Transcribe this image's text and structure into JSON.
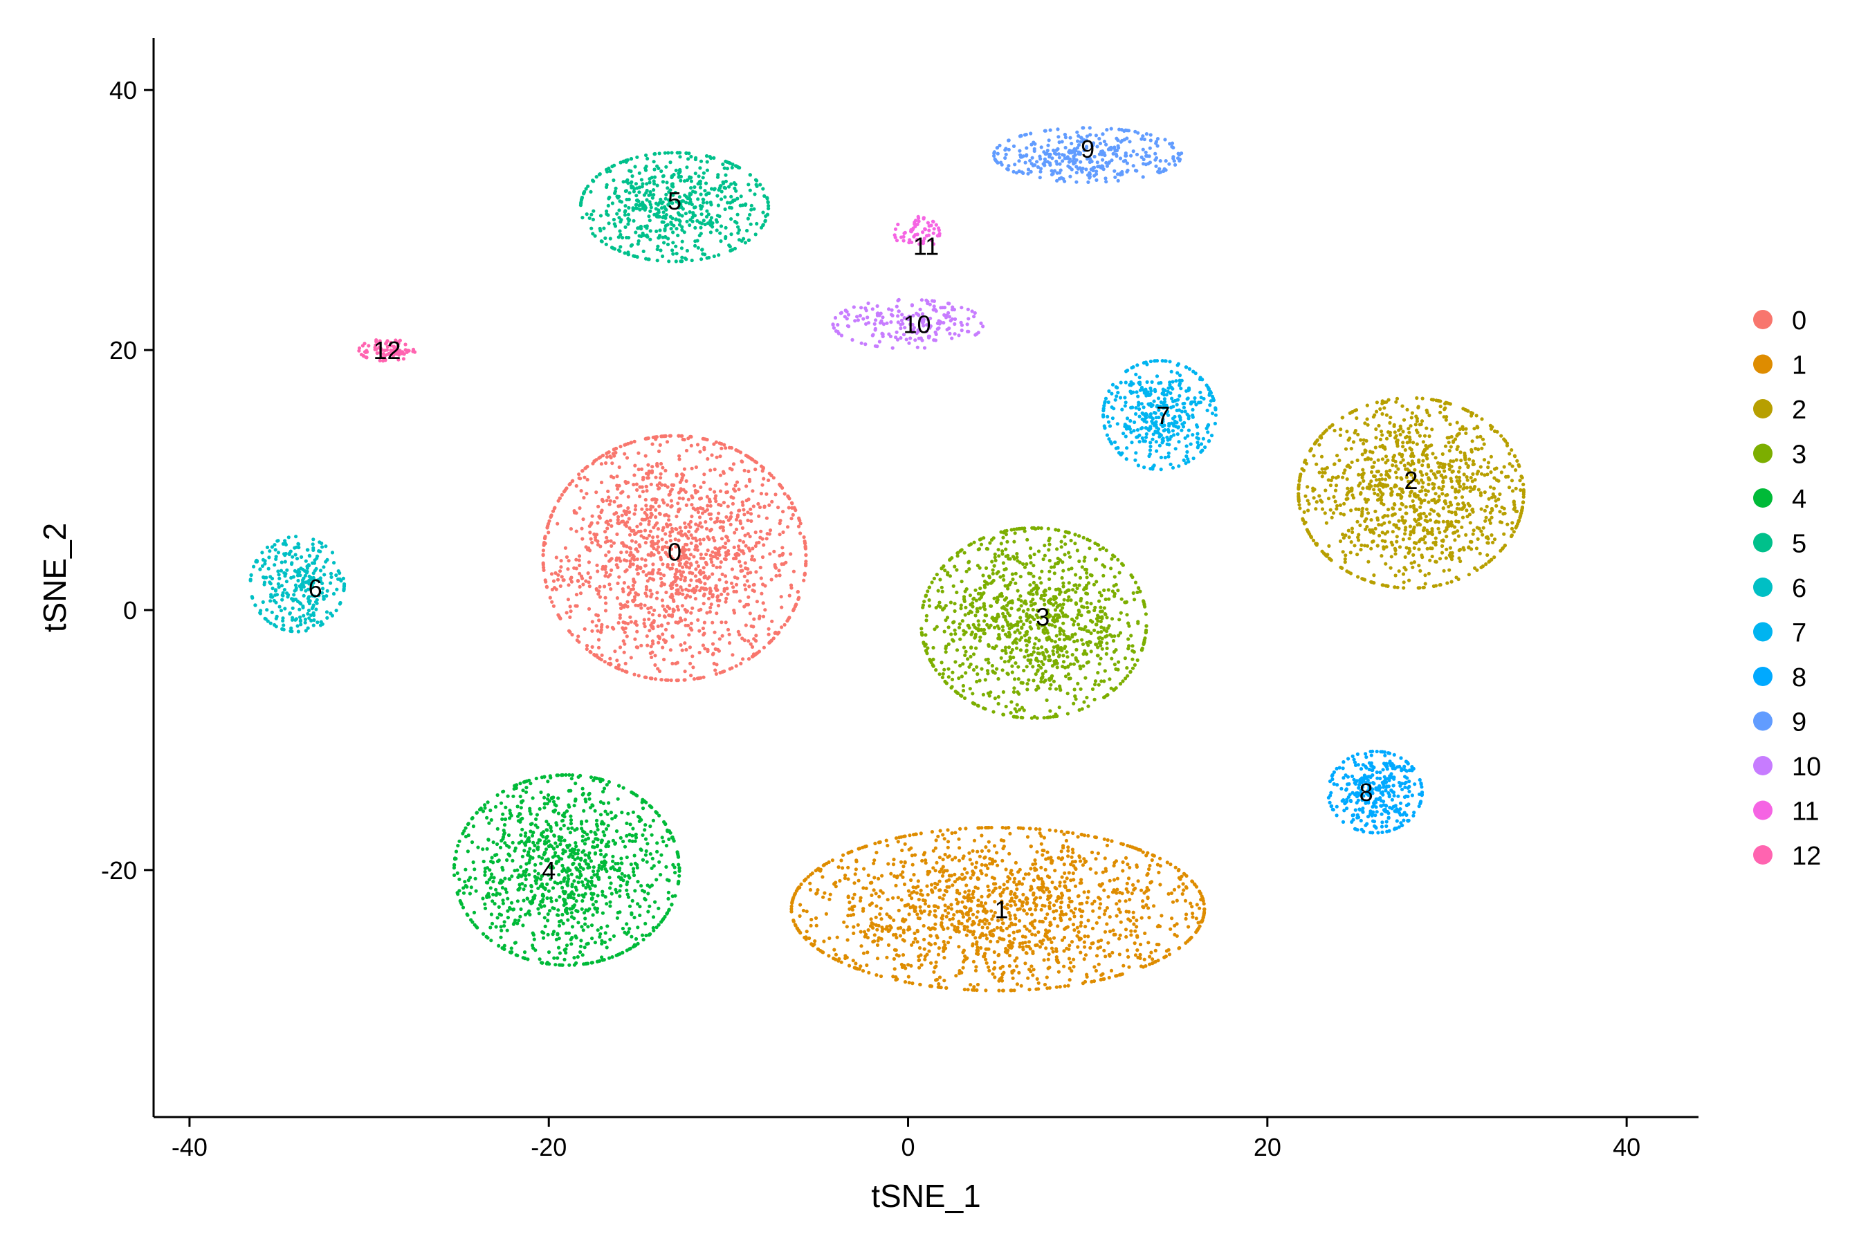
{
  "chart_data": {
    "type": "scatter",
    "title": "",
    "xlabel": "tSNE_1",
    "ylabel": "tSNE_2",
    "xlim": [
      -42,
      44
    ],
    "ylim": [
      -39,
      44
    ],
    "xticks": [
      -40,
      -20,
      0,
      20,
      40
    ],
    "yticks": [
      -20,
      0,
      20,
      40
    ],
    "grid": false,
    "legend_position": "right",
    "series": [
      {
        "name": "0",
        "color": "#F8766D",
        "center": [
          -13,
          4
        ],
        "spread": [
          7,
          9
        ],
        "n": 1500
      },
      {
        "name": "1",
        "color": "#DE8C00",
        "center": [
          5,
          -23
        ],
        "spread": [
          11,
          6
        ],
        "n": 1500
      },
      {
        "name": "2",
        "color": "#B79F00",
        "center": [
          28,
          9
        ],
        "spread": [
          6,
          7
        ],
        "n": 1100
      },
      {
        "name": "3",
        "color": "#7CAE00",
        "center": [
          7,
          -1
        ],
        "spread": [
          6,
          7
        ],
        "n": 1100
      },
      {
        "name": "4",
        "color": "#00BA38",
        "center": [
          -19,
          -20
        ],
        "spread": [
          6,
          7
        ],
        "n": 1100
      },
      {
        "name": "5",
        "color": "#00C08B",
        "center": [
          -13,
          31
        ],
        "spread": [
          5,
          4
        ],
        "n": 600
      },
      {
        "name": "6",
        "color": "#00BFC4",
        "center": [
          -34,
          2
        ],
        "spread": [
          2.5,
          3.5
        ],
        "n": 300
      },
      {
        "name": "7",
        "color": "#00B4F0",
        "center": [
          14,
          15
        ],
        "spread": [
          3,
          4
        ],
        "n": 400
      },
      {
        "name": "8",
        "color": "#00A9FF",
        "center": [
          26,
          -14
        ],
        "spread": [
          2.5,
          3
        ],
        "n": 350
      },
      {
        "name": "9",
        "color": "#619CFF",
        "center": [
          10,
          35
        ],
        "spread": [
          5,
          2
        ],
        "n": 350
      },
      {
        "name": "10",
        "color": "#C77CFF",
        "center": [
          0,
          22
        ],
        "spread": [
          4,
          1.8
        ],
        "n": 200
      },
      {
        "name": "11",
        "color": "#F564E3",
        "center": [
          0.5,
          29
        ],
        "spread": [
          1.2,
          1.2
        ],
        "n": 60
      },
      {
        "name": "12",
        "color": "#FF64B0",
        "center": [
          -29,
          20
        ],
        "spread": [
          1.5,
          0.8
        ],
        "n": 80
      }
    ],
    "cluster_labels": [
      {
        "text": "0",
        "x": -13,
        "y": 4.5
      },
      {
        "text": "1",
        "x": 5.2,
        "y": -23
      },
      {
        "text": "2",
        "x": 28,
        "y": 10
      },
      {
        "text": "3",
        "x": 7.5,
        "y": -0.5
      },
      {
        "text": "4",
        "x": -20,
        "y": -20
      },
      {
        "text": "5",
        "x": -13,
        "y": 31.5
      },
      {
        "text": "6",
        "x": -33,
        "y": 1.7
      },
      {
        "text": "7",
        "x": 14.2,
        "y": 15
      },
      {
        "text": "8",
        "x": 25.5,
        "y": -14
      },
      {
        "text": "9",
        "x": 10,
        "y": 35.5
      },
      {
        "text": "10",
        "x": 0.5,
        "y": 22
      },
      {
        "text": "11",
        "x": 1,
        "y": 28
      },
      {
        "text": "12",
        "x": -29,
        "y": 20
      }
    ]
  }
}
